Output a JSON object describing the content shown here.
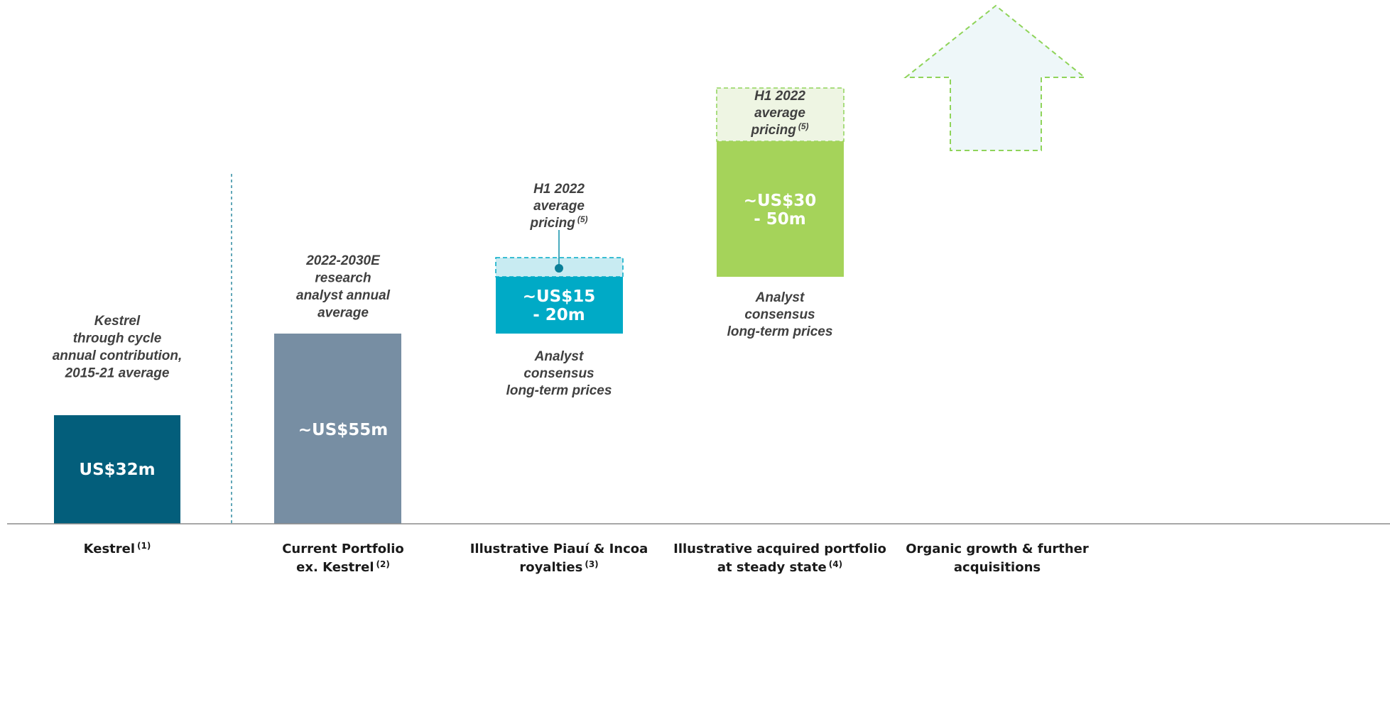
{
  "columns": [
    {
      "label": [
        "Kestrel"
      ],
      "note": "(1)",
      "value": [
        "US$32m"
      ],
      "annotation": [
        "Kestrel",
        "through cycle",
        "annual contribution,",
        "2015-21 average"
      ]
    },
    {
      "label": [
        "Current Portfolio",
        "ex. Kestrel"
      ],
      "note": "(2)",
      "value": [
        "~US$55m"
      ],
      "annotation": [
        "2022-2030E",
        "research",
        "analyst annual",
        "average"
      ]
    },
    {
      "label": [
        "Illustrative Piauí & Incoa",
        "royalties"
      ],
      "note": "(3)",
      "value": [
        "~US$15",
        "- 20m"
      ],
      "pricing": [
        "H1 2022",
        "average",
        "pricing"
      ],
      "pricing_note": "(5)",
      "below": [
        "Analyst",
        "consensus",
        "long-term prices"
      ]
    },
    {
      "label": [
        "Illustrative acquired portfolio",
        "at steady state"
      ],
      "note": "(4)",
      "value": [
        "~US$30",
        "- 50m"
      ],
      "pricing": [
        "H1 2022",
        "average",
        "pricing"
      ],
      "pricing_note": "(5)",
      "below": [
        "Analyst",
        "consensus",
        "long-term prices"
      ]
    },
    {
      "label": [
        "Organic growth & further",
        "acquisitions"
      ]
    }
  ]
}
